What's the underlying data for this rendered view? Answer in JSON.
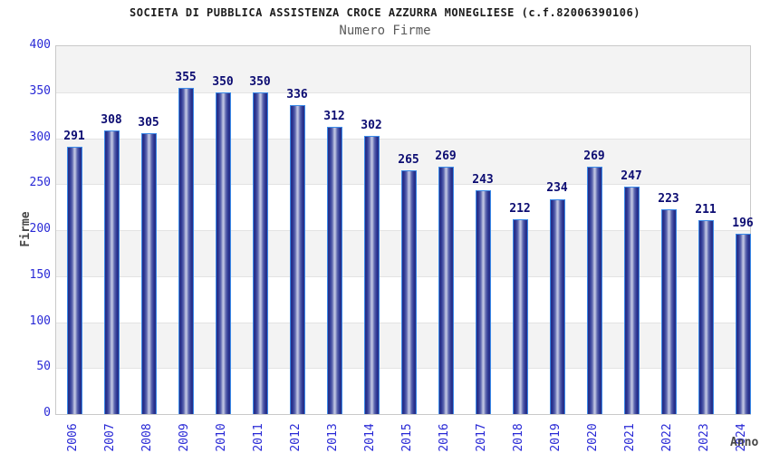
{
  "header": {
    "title": "SOCIETA DI PUBBLICA ASSISTENZA CROCE AZZURRA MONEGLIESE (c.f.82006390106)",
    "subtitle": "Numero Firme"
  },
  "chart_data": {
    "type": "bar",
    "title": "SOCIETA DI PUBBLICA ASSISTENZA CROCE AZZURRA MONEGLIESE (c.f.82006390106)",
    "subtitle": "Numero Firme",
    "categories": [
      "2006",
      "2007",
      "2008",
      "2009",
      "2010",
      "2011",
      "2012",
      "2013",
      "2014",
      "2015",
      "2016",
      "2017",
      "2018",
      "2019",
      "2020",
      "2021",
      "2022",
      "2023",
      "2024"
    ],
    "values": [
      291,
      308,
      305,
      355,
      350,
      350,
      336,
      312,
      302,
      265,
      269,
      243,
      212,
      234,
      269,
      247,
      223,
      211,
      196
    ],
    "xlabel": "Anno",
    "ylabel": "Firme",
    "ylim": [
      0,
      400
    ],
    "yticks": [
      0,
      50,
      100,
      150,
      200,
      250,
      300,
      350,
      400
    ],
    "value_labels_shown": true,
    "grid": "horizontal gridlines every 50 with alternating gray/white bands",
    "legend": "none",
    "colors": {
      "bar_dark": "#272f88",
      "bar_mid": "#5f69b0",
      "bar_light": "#bcc1e0",
      "bar_border": "#3b8ae8",
      "tick_label": "#2929d6",
      "value_label": "#0c0c72",
      "band": "#f3f3f3",
      "gridline": "#e3e3e3",
      "axis_title": "#474747"
    }
  }
}
